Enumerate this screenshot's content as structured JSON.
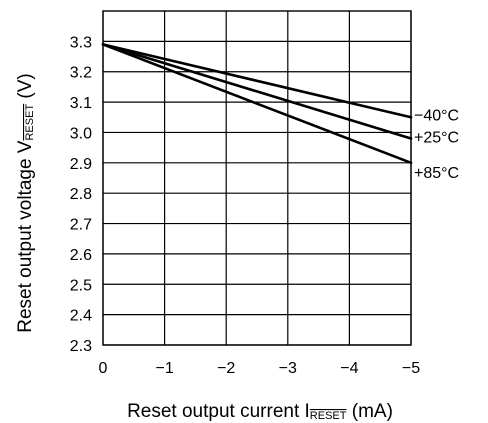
{
  "chart_data": {
    "type": "line",
    "title": "",
    "xlabel": {
      "main": "Reset output current  I",
      "subscript": "RESET",
      "unit": " (mA)"
    },
    "ylabel": {
      "main": "Reset output voltage V",
      "subscript": "RESET",
      "unit": " (V)"
    },
    "xlim": [
      0,
      -5
    ],
    "ylim": [
      2.3,
      3.4
    ],
    "x_ticks": [
      0,
      -1,
      -2,
      -3,
      -4,
      -5
    ],
    "x_tick_labels": [
      "0",
      "−1",
      "−2",
      "−3",
      "−4",
      "−5"
    ],
    "y_ticks": [
      2.3,
      2.4,
      2.5,
      2.6,
      2.7,
      2.8,
      2.9,
      3.0,
      3.1,
      3.2,
      3.3
    ],
    "y_tick_labels": [
      "2.3",
      "2.4",
      "2.5",
      "2.6",
      "2.7",
      "2.8",
      "2.9",
      "3.0",
      "3.1",
      "3.2",
      "3.3"
    ],
    "grid": true,
    "series": [
      {
        "name": "−40°C",
        "x": [
          0,
          -5
        ],
        "y": [
          3.29,
          3.05
        ]
      },
      {
        "name": "+25°C",
        "x": [
          0,
          -5
        ],
        "y": [
          3.29,
          2.98
        ]
      },
      {
        "name": "+85°C",
        "x": [
          0,
          -5
        ],
        "y": [
          3.29,
          2.9
        ]
      }
    ]
  }
}
